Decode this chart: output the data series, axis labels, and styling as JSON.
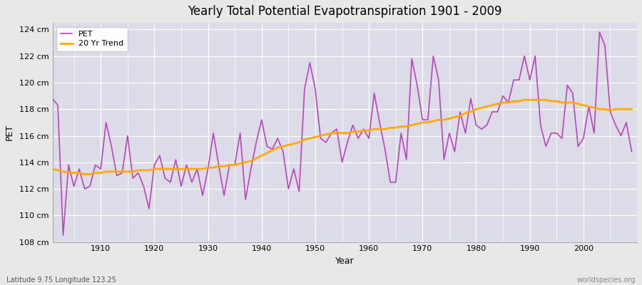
{
  "title": "Yearly Total Potential Evapotranspiration 1901 - 2009",
  "xlabel": "Year",
  "ylabel": "PET",
  "subtitle": "Latitude 9.75 Longitude 123.25",
  "watermark": "worldspecies.org",
  "pet_color": "#bb44bb",
  "trend_color": "#ffaa00",
  "fig_color": "#e8e8e8",
  "bg_color": "#dcdce8",
  "ylim": [
    108,
    125
  ],
  "yticks": [
    108,
    110,
    112,
    114,
    116,
    118,
    120,
    122,
    124
  ],
  "ytick_labels": [
    "108 cm",
    "110 cm",
    "112 cm",
    "114 cm",
    "116 cm",
    "118 cm",
    "120 cm",
    "122 cm",
    "124 cm"
  ],
  "years": [
    1901,
    1902,
    1903,
    1904,
    1905,
    1906,
    1907,
    1908,
    1909,
    1910,
    1911,
    1912,
    1913,
    1914,
    1915,
    1916,
    1917,
    1918,
    1919,
    1920,
    1921,
    1922,
    1923,
    1924,
    1925,
    1926,
    1927,
    1928,
    1929,
    1930,
    1931,
    1932,
    1933,
    1934,
    1935,
    1936,
    1937,
    1938,
    1939,
    1940,
    1941,
    1942,
    1943,
    1944,
    1945,
    1946,
    1947,
    1948,
    1949,
    1950,
    1951,
    1952,
    1953,
    1954,
    1955,
    1956,
    1957,
    1958,
    1959,
    1960,
    1961,
    1962,
    1963,
    1964,
    1965,
    1966,
    1967,
    1968,
    1969,
    1970,
    1971,
    1972,
    1973,
    1974,
    1975,
    1976,
    1977,
    1978,
    1979,
    1980,
    1981,
    1982,
    1983,
    1984,
    1985,
    1986,
    1987,
    1988,
    1989,
    1990,
    1991,
    1992,
    1993,
    1994,
    1995,
    1996,
    1997,
    1998,
    1999,
    2000,
    2001,
    2002,
    2003,
    2004,
    2005,
    2006,
    2007,
    2008,
    2009
  ],
  "pet": [
    118.8,
    118.3,
    108.5,
    113.8,
    112.2,
    113.5,
    112.0,
    112.2,
    113.8,
    113.5,
    117.0,
    115.2,
    113.0,
    113.2,
    116.0,
    112.8,
    113.2,
    112.2,
    110.5,
    113.8,
    114.5,
    112.8,
    112.5,
    114.2,
    112.2,
    113.8,
    112.5,
    113.5,
    111.5,
    113.5,
    116.2,
    113.8,
    111.5,
    113.8,
    113.8,
    116.2,
    111.2,
    113.5,
    115.5,
    117.2,
    115.2,
    115.0,
    115.8,
    114.8,
    112.0,
    113.5,
    111.8,
    119.5,
    121.5,
    119.5,
    115.8,
    115.5,
    116.2,
    116.5,
    114.0,
    115.5,
    116.8,
    115.8,
    116.5,
    115.8,
    119.2,
    117.0,
    115.0,
    112.5,
    112.5,
    116.2,
    114.2,
    121.8,
    119.8,
    117.2,
    117.2,
    122.0,
    120.2,
    114.2,
    116.2,
    114.8,
    117.8,
    116.2,
    118.8,
    116.8,
    116.5,
    116.8,
    117.8,
    117.8,
    119.0,
    118.5,
    120.2,
    120.2,
    122.0,
    120.2,
    122.0,
    116.8,
    115.2,
    116.2,
    116.2,
    115.8,
    119.8,
    119.2,
    115.2,
    115.8,
    118.2,
    116.2,
    123.8,
    122.8,
    117.8,
    116.8,
    116.0,
    117.0,
    114.8
  ],
  "trend": [
    113.5,
    113.4,
    113.3,
    113.2,
    113.2,
    113.2,
    113.1,
    113.1,
    113.2,
    113.2,
    113.3,
    113.3,
    113.3,
    113.3,
    113.3,
    113.3,
    113.4,
    113.4,
    113.4,
    113.5,
    113.5,
    113.5,
    113.5,
    113.5,
    113.5,
    113.5,
    113.5,
    113.5,
    113.5,
    113.6,
    113.6,
    113.7,
    113.7,
    113.8,
    113.8,
    113.9,
    114.0,
    114.1,
    114.3,
    114.5,
    114.7,
    114.9,
    115.1,
    115.2,
    115.3,
    115.4,
    115.5,
    115.7,
    115.8,
    115.9,
    116.0,
    116.1,
    116.2,
    116.2,
    116.2,
    116.2,
    116.3,
    116.3,
    116.4,
    116.4,
    116.5,
    116.5,
    116.5,
    116.6,
    116.6,
    116.7,
    116.7,
    116.8,
    116.9,
    117.0,
    117.0,
    117.1,
    117.2,
    117.2,
    117.3,
    117.4,
    117.5,
    117.7,
    117.8,
    118.0,
    118.1,
    118.2,
    118.3,
    118.4,
    118.5,
    118.5,
    118.6,
    118.6,
    118.7,
    118.7,
    118.7,
    118.7,
    118.7,
    118.6,
    118.6,
    118.5,
    118.5,
    118.5,
    118.4,
    118.3,
    118.2,
    118.1,
    118.0,
    118.0,
    117.9,
    118.0,
    118.0,
    118.0,
    118.0
  ]
}
